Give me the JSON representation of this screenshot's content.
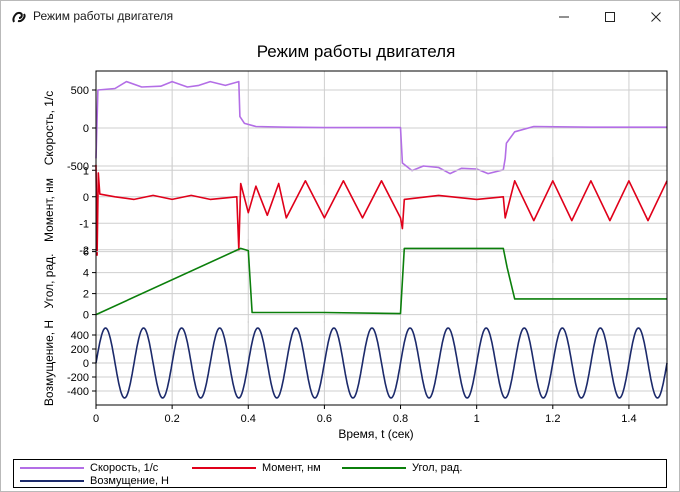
{
  "window": {
    "title": "Режим работы двигателя",
    "app_icon": "motor-app-icon",
    "controls": {
      "minimize": "minimize-icon",
      "maximize": "maximize-icon",
      "close": "close-icon"
    }
  },
  "chart_data": {
    "type": "line",
    "title": "Режим работы двигателя",
    "xlabel": "Время, t (сек)",
    "xlim": [
      0,
      1.5
    ],
    "x_ticks": [
      "0",
      "0.2",
      "0.4",
      "0.6",
      "0.8",
      "1",
      "1.2",
      "1.4"
    ],
    "x_tick_values": [
      0,
      0.2,
      0.4,
      0.6,
      0.8,
      1.0,
      1.2,
      1.4
    ],
    "grid": true,
    "legend_placement": "bottom",
    "panels": [
      {
        "ylabel": "Скорость, 1/с",
        "ylim": [
          -750,
          750
        ],
        "y_ticks": [
          "500",
          "0",
          "-500"
        ],
        "y_tick_values": [
          500,
          0,
          -500
        ],
        "series": [
          {
            "name": "Скорость, 1/с",
            "color": "#b36ee6",
            "points": [
              [
                0,
                -400
              ],
              [
                0.005,
                500
              ],
              [
                0.05,
                520
              ],
              [
                0.08,
                610
              ],
              [
                0.12,
                540
              ],
              [
                0.17,
                550
              ],
              [
                0.2,
                610
              ],
              [
                0.24,
                540
              ],
              [
                0.27,
                560
              ],
              [
                0.3,
                610
              ],
              [
                0.34,
                560
              ],
              [
                0.375,
                610
              ],
              [
                0.378,
                150
              ],
              [
                0.39,
                60
              ],
              [
                0.42,
                20
              ],
              [
                0.5,
                10
              ],
              [
                0.6,
                5
              ],
              [
                0.7,
                5
              ],
              [
                0.8,
                5
              ],
              [
                0.805,
                -460
              ],
              [
                0.83,
                -560
              ],
              [
                0.86,
                -500
              ],
              [
                0.9,
                -520
              ],
              [
                0.93,
                -600
              ],
              [
                0.96,
                -530
              ],
              [
                1.0,
                -540
              ],
              [
                1.03,
                -600
              ],
              [
                1.07,
                -550
              ],
              [
                1.075,
                -400
              ],
              [
                1.078,
                -200
              ],
              [
                1.1,
                -50
              ],
              [
                1.15,
                20
              ],
              [
                1.3,
                10
              ],
              [
                1.5,
                10
              ]
            ]
          }
        ]
      },
      {
        "ylabel": "Момент, нм",
        "ylim": [
          -2.5,
          1.5
        ],
        "y_ticks": [
          "1",
          "0",
          "-1",
          "-2"
        ],
        "y_tick_values": [
          1,
          0,
          -1,
          -2
        ],
        "series": [
          {
            "name": "Момент, нм",
            "color": "#e0001a",
            "points": [
              [
                0,
                1.2
              ],
              [
                0.003,
                -2.2
              ],
              [
                0.006,
                0.9
              ],
              [
                0.01,
                0.1
              ],
              [
                0.05,
                0
              ],
              [
                0.1,
                -0.1
              ],
              [
                0.15,
                0.05
              ],
              [
                0.2,
                -0.1
              ],
              [
                0.25,
                0.05
              ],
              [
                0.3,
                -0.1
              ],
              [
                0.37,
                0
              ],
              [
                0.375,
                -2
              ],
              [
                0.38,
                0.5
              ],
              [
                0.4,
                -0.6
              ],
              [
                0.42,
                0.4
              ],
              [
                0.45,
                -0.7
              ],
              [
                0.48,
                0.5
              ],
              [
                0.5,
                -0.8
              ],
              [
                0.55,
                0.6
              ],
              [
                0.6,
                -0.8
              ],
              [
                0.65,
                0.6
              ],
              [
                0.7,
                -0.8
              ],
              [
                0.75,
                0.6
              ],
              [
                0.8,
                -0.8
              ],
              [
                0.805,
                -1.2
              ],
              [
                0.81,
                -0.1
              ],
              [
                0.9,
                0.05
              ],
              [
                1.0,
                -0.1
              ],
              [
                1.07,
                0
              ],
              [
                1.075,
                -0.8
              ],
              [
                1.1,
                0.6
              ],
              [
                1.15,
                -0.9
              ],
              [
                1.2,
                0.6
              ],
              [
                1.25,
                -0.9
              ],
              [
                1.3,
                0.6
              ],
              [
                1.35,
                -0.9
              ],
              [
                1.4,
                0.6
              ],
              [
                1.45,
                -0.9
              ],
              [
                1.5,
                0.6
              ]
            ]
          }
        ]
      },
      {
        "ylabel": "Угол, рад.",
        "ylim": [
          -0.8,
          7.2
        ],
        "y_ticks": [
          "6",
          "4",
          "2",
          "0"
        ],
        "y_tick_values": [
          6,
          4,
          2,
          0
        ],
        "series": [
          {
            "name": "Угол, рад.",
            "color": "#0b7f0b",
            "points": [
              [
                0,
                0
              ],
              [
                0.38,
                6.3
              ],
              [
                0.4,
                6.1
              ],
              [
                0.41,
                0.2
              ],
              [
                0.6,
                0.2
              ],
              [
                0.8,
                0.1
              ],
              [
                0.81,
                6.3
              ],
              [
                1.07,
                6.3
              ],
              [
                1.08,
                4.5
              ],
              [
                1.1,
                1.5
              ],
              [
                1.5,
                1.5
              ]
            ]
          }
        ]
      },
      {
        "ylabel": "Возмущение, Н",
        "ylim": [
          -600,
          600
        ],
        "y_ticks": [
          "400",
          "200",
          "0",
          "-200",
          "-400"
        ],
        "y_tick_values": [
          400,
          200,
          0,
          -200,
          -400
        ],
        "series": [
          {
            "name": "Возмущение, Н",
            "color": "#1c2a6b",
            "amplitude": 500,
            "frequency_hz": 10,
            "phase_start_value": 0
          }
        ]
      }
    ],
    "legend": [
      {
        "name": "Скорость, 1/с",
        "color": "#b36ee6"
      },
      {
        "name": "Момент, нм",
        "color": "#e0001a"
      },
      {
        "name": "Угол, рад.",
        "color": "#0b7f0b"
      },
      {
        "name": "Возмущение, Н",
        "color": "#1c2a6b"
      }
    ]
  }
}
